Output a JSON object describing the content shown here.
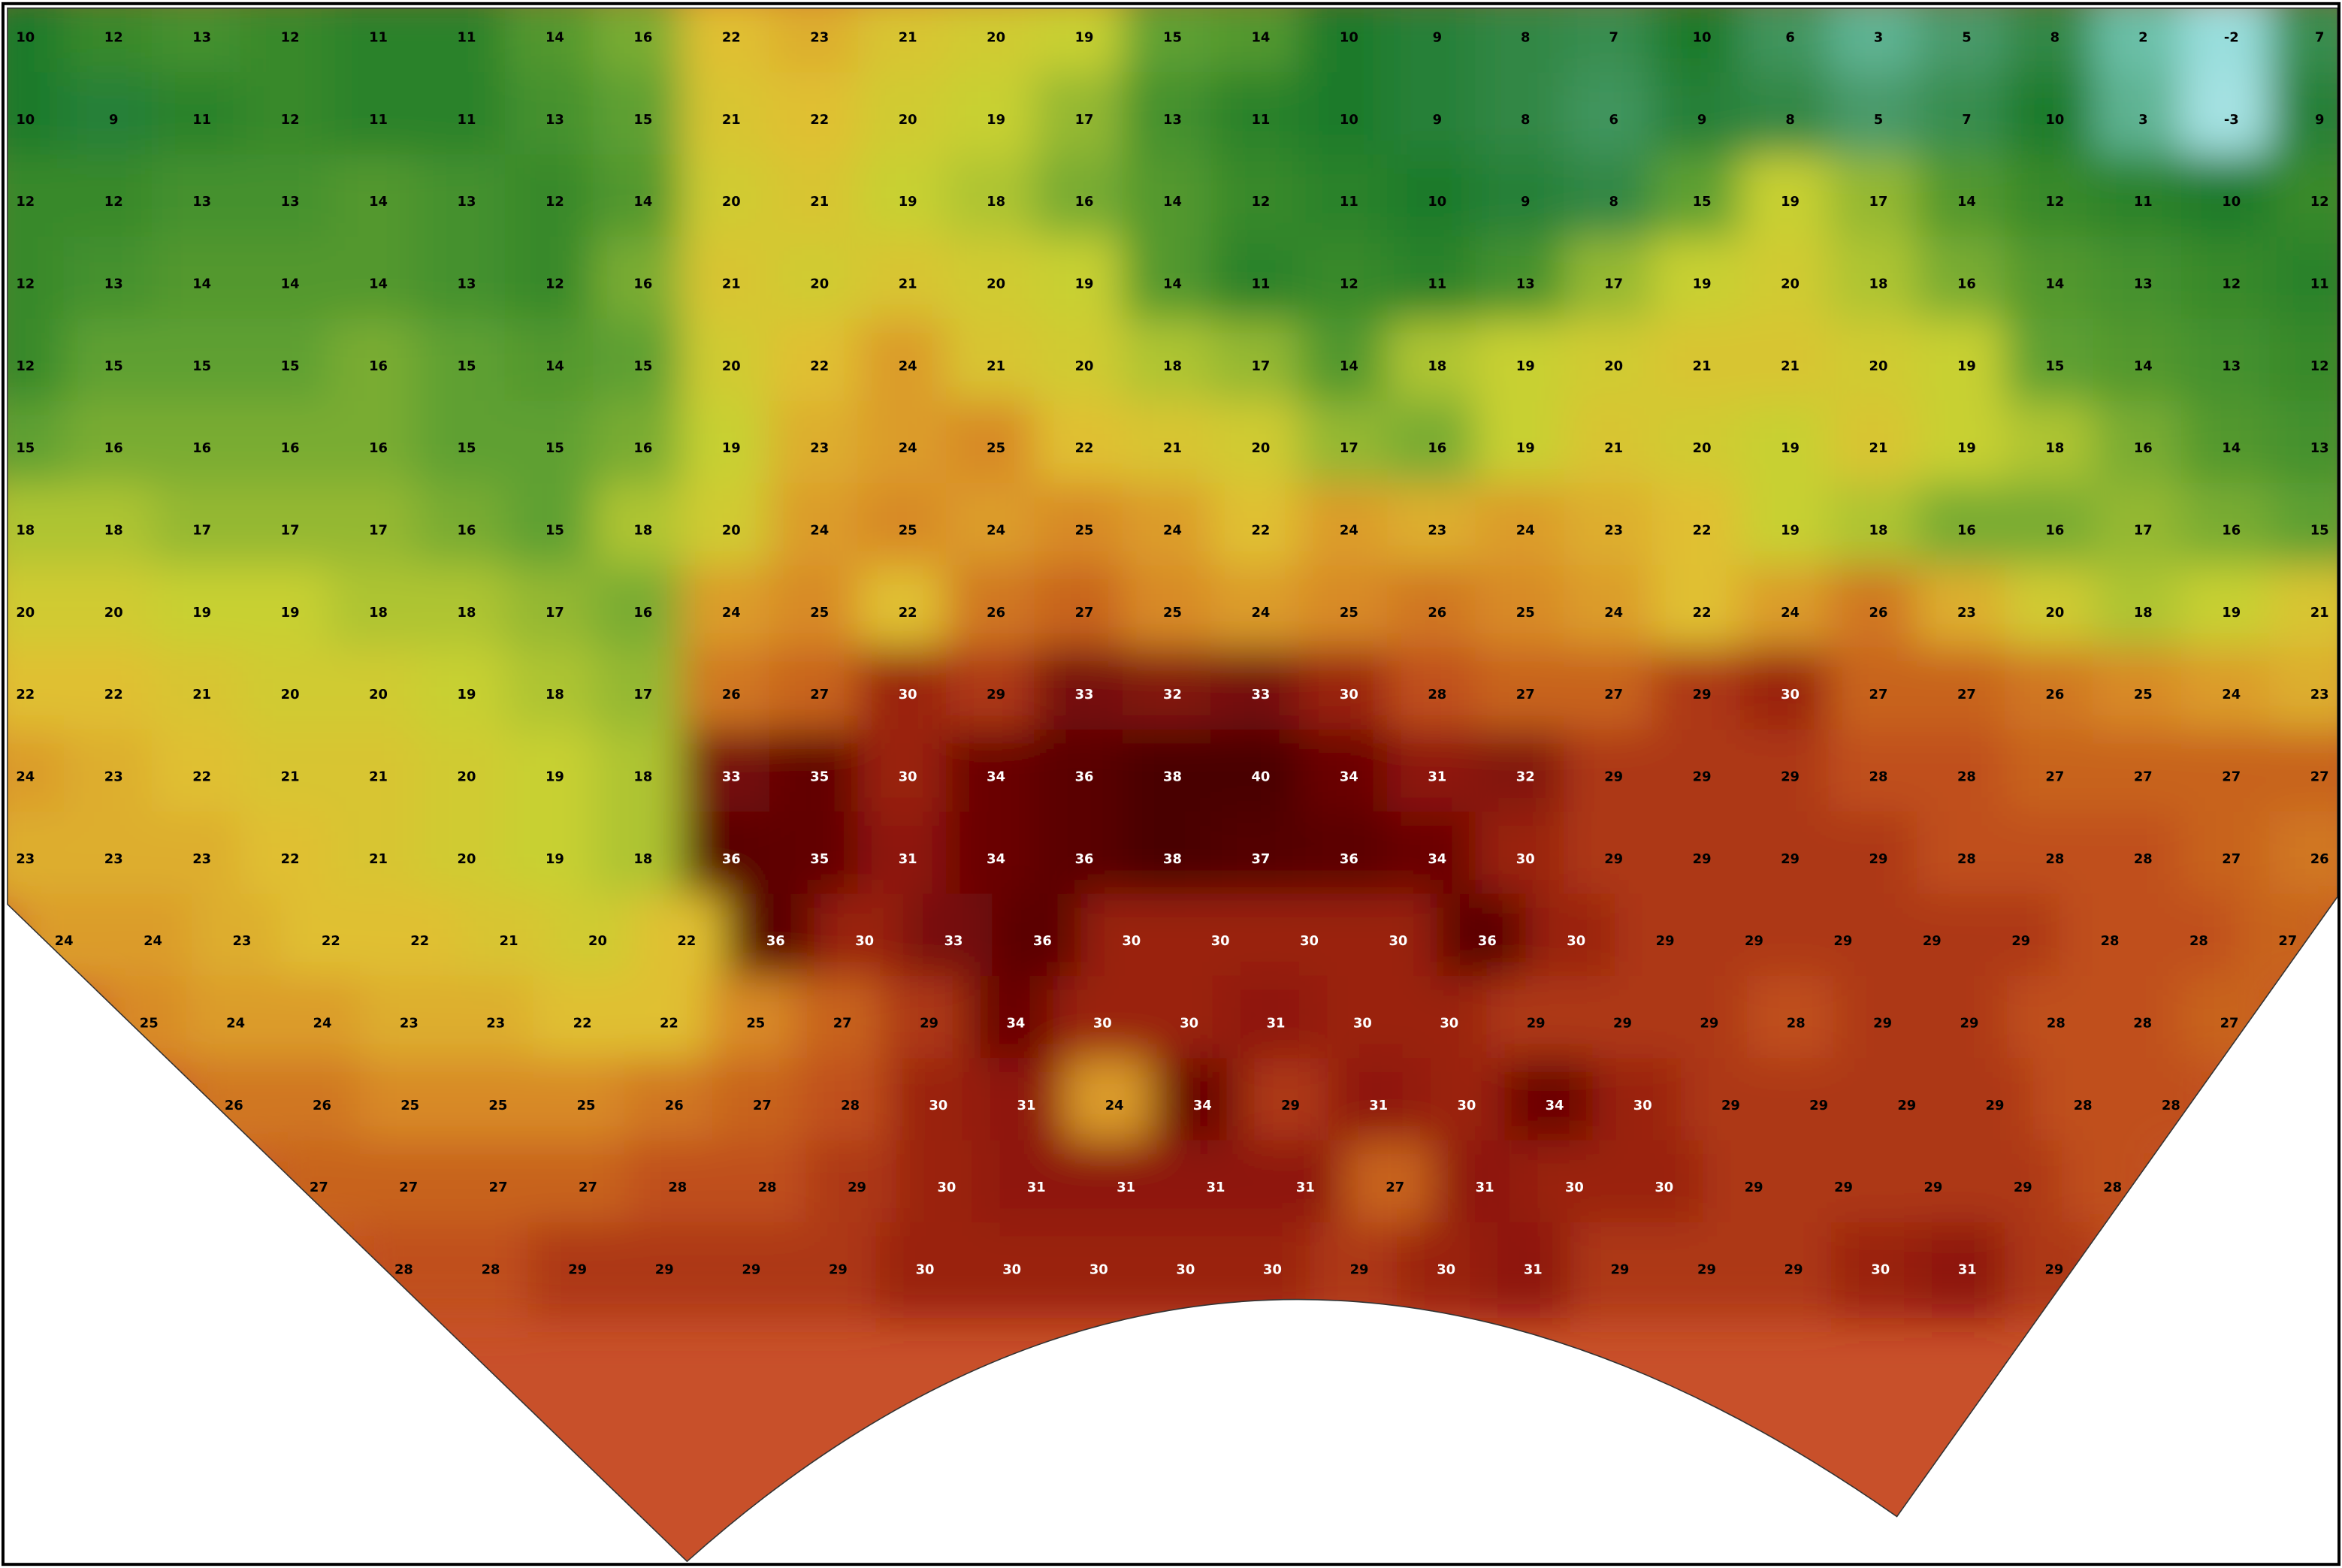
{
  "map": {
    "rows": [
      [
        10,
        12,
        13,
        12,
        11,
        11,
        14,
        16,
        22,
        23,
        21,
        20,
        19,
        15,
        14,
        10,
        9,
        8,
        7,
        10,
        6,
        3,
        5,
        8,
        2,
        -2,
        7
      ],
      [
        10,
        9,
        11,
        12,
        11,
        11,
        13,
        15,
        21,
        22,
        20,
        19,
        17,
        13,
        11,
        10,
        9,
        8,
        6,
        9,
        8,
        5,
        7,
        10,
        3,
        -3,
        9
      ],
      [
        12,
        12,
        13,
        13,
        14,
        13,
        12,
        14,
        20,
        21,
        19,
        18,
        16,
        14,
        12,
        11,
        10,
        9,
        8,
        15,
        19,
        17,
        14,
        12,
        11,
        10,
        12
      ],
      [
        12,
        13,
        14,
        14,
        14,
        13,
        12,
        16,
        21,
        20,
        21,
        20,
        19,
        14,
        11,
        12,
        11,
        13,
        17,
        19,
        20,
        18,
        16,
        14,
        13,
        12,
        11
      ],
      [
        12,
        15,
        15,
        15,
        16,
        15,
        14,
        15,
        20,
        22,
        24,
        21,
        20,
        18,
        17,
        14,
        18,
        19,
        20,
        21,
        21,
        20,
        19,
        15,
        14,
        13,
        12
      ],
      [
        15,
        16,
        16,
        16,
        16,
        15,
        15,
        16,
        19,
        23,
        24,
        25,
        22,
        21,
        20,
        17,
        16,
        19,
        21,
        20,
        19,
        21,
        19,
        18,
        16,
        14,
        13
      ],
      [
        18,
        18,
        17,
        17,
        17,
        16,
        15,
        18,
        20,
        24,
        25,
        24,
        25,
        24,
        22,
        24,
        23,
        24,
        23,
        22,
        19,
        18,
        16,
        16,
        17,
        16,
        15
      ],
      [
        20,
        20,
        19,
        19,
        18,
        18,
        17,
        16,
        24,
        25,
        22,
        26,
        27,
        25,
        24,
        25,
        26,
        25,
        24,
        22,
        24,
        26,
        23,
        20,
        18,
        19,
        21
      ],
      [
        22,
        22,
        21,
        20,
        20,
        19,
        18,
        17,
        26,
        27,
        30,
        29,
        33,
        32,
        33,
        30,
        28,
        27,
        27,
        29,
        30,
        27,
        27,
        26,
        25,
        24,
        23
      ],
      [
        24,
        23,
        22,
        21,
        21,
        20,
        19,
        18,
        33,
        35,
        30,
        34,
        36,
        38,
        40,
        34,
        31,
        32,
        29,
        29,
        29,
        28,
        28,
        27,
        27,
        27,
        27
      ],
      [
        23,
        23,
        23,
        22,
        21,
        20,
        19,
        18,
        36,
        35,
        31,
        34,
        36,
        38,
        37,
        36,
        34,
        30,
        29,
        29,
        29,
        29,
        28,
        28,
        28,
        27,
        26
      ],
      [
        24,
        24,
        23,
        22,
        22,
        21,
        20,
        22,
        36,
        30,
        33,
        36,
        30,
        30,
        30,
        30,
        36,
        30,
        29,
        29,
        29,
        29,
        29,
        28,
        28,
        27
      ],
      [
        25,
        24,
        24,
        23,
        23,
        22,
        22,
        25,
        27,
        29,
        34,
        30,
        30,
        31,
        30,
        30,
        29,
        29,
        29,
        28,
        29,
        29,
        28,
        28,
        27
      ],
      [
        26,
        26,
        25,
        25,
        25,
        26,
        27,
        28,
        30,
        31,
        24,
        34,
        29,
        31,
        30,
        34,
        30,
        29,
        29,
        29,
        29,
        28,
        28
      ],
      [
        27,
        27,
        27,
        27,
        28,
        28,
        29,
        30,
        31,
        31,
        31,
        31,
        27,
        31,
        30,
        30,
        29,
        29,
        29,
        29,
        28
      ],
      [
        28,
        28,
        29,
        29,
        29,
        29,
        30,
        30,
        30,
        30,
        30,
        29,
        30,
        31,
        29,
        29,
        29,
        30,
        31,
        29
      ]
    ]
  }
}
